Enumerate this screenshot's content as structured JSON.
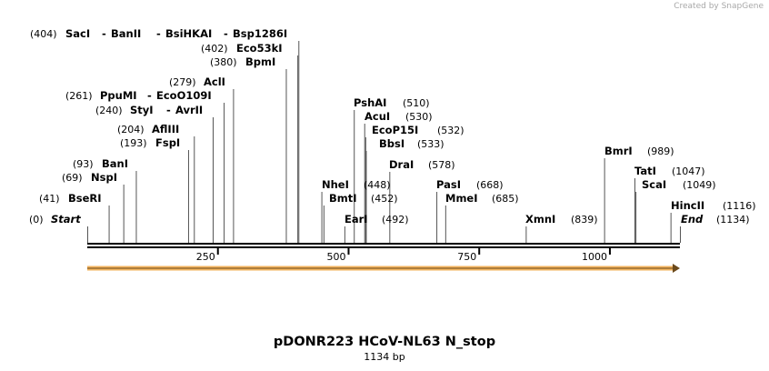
{
  "watermark": "Created by SnapGene",
  "plasmid": {
    "name": "pDONR223 HCoV-NL63 N_stop",
    "length_label": "1134 bp",
    "length": 1134
  },
  "scale": {
    "ticks": [
      250,
      500,
      750,
      1000
    ]
  },
  "feature": {
    "type": "orf-arrow",
    "start": 1,
    "end": 1134,
    "color": "#f2b35e"
  },
  "enzymes": [
    {
      "id": "start",
      "label": "Start",
      "pos": 0,
      "pos_label": "(0)",
      "bold_italic": true
    },
    {
      "id": "bseri",
      "label": "BseRI",
      "pos": 41,
      "pos_label": "(41)"
    },
    {
      "id": "nspi",
      "label": "NspI",
      "pos": 69,
      "pos_label": "(69)"
    },
    {
      "id": "bani",
      "label": "BanI",
      "pos": 93,
      "pos_label": "(93)"
    },
    {
      "id": "fspi",
      "label": "FspI",
      "pos": 193,
      "pos_label": "(193)"
    },
    {
      "id": "afliii",
      "label": "AflIII",
      "pos": 204,
      "pos_label": "(204)"
    },
    {
      "id": "styi",
      "label": "StyI",
      "pos": 240,
      "pos_label": "(240)"
    },
    {
      "id": "avrii",
      "label": "AvrII",
      "pos": 240,
      "pos_label": ""
    },
    {
      "id": "ppumi",
      "label": "PpuMI",
      "pos": 261,
      "pos_label": "(261)"
    },
    {
      "id": "ecoo109i",
      "label": "EcoO109I",
      "pos": 261,
      "pos_label": ""
    },
    {
      "id": "acli",
      "label": "AclI",
      "pos": 279,
      "pos_label": "(279)"
    },
    {
      "id": "bpmi",
      "label": "BpmI",
      "pos": 380,
      "pos_label": "(380)"
    },
    {
      "id": "eco53ki",
      "label": "Eco53kI",
      "pos": 402,
      "pos_label": "(402)"
    },
    {
      "id": "saci",
      "label": "SacI",
      "pos": 404,
      "pos_label": "(404)"
    },
    {
      "id": "banii",
      "label": "BanII",
      "pos": 404,
      "pos_label": ""
    },
    {
      "id": "bsihkai",
      "label": "BsiHKAI",
      "pos": 404,
      "pos_label": ""
    },
    {
      "id": "bsp1286i",
      "label": "Bsp1286I",
      "pos": 404,
      "pos_label": ""
    },
    {
      "id": "nhei",
      "label": "NheI",
      "pos": 448,
      "pos_label": "(448)"
    },
    {
      "id": "bmti",
      "label": "BmtI",
      "pos": 452,
      "pos_label": "(452)"
    },
    {
      "id": "eari",
      "label": "EarI",
      "pos": 492,
      "pos_label": "(492)"
    },
    {
      "id": "pshai",
      "label": "PshAI",
      "pos": 510,
      "pos_label": "(510)"
    },
    {
      "id": "acui",
      "label": "AcuI",
      "pos": 530,
      "pos_label": "(530)"
    },
    {
      "id": "ecop15i",
      "label": "EcoP15I",
      "pos": 532,
      "pos_label": "(532)"
    },
    {
      "id": "bbsi",
      "label": "BbsI",
      "pos": 533,
      "pos_label": "(533)"
    },
    {
      "id": "drai",
      "label": "DraI",
      "pos": 578,
      "pos_label": "(578)"
    },
    {
      "id": "pasi",
      "label": "PasI",
      "pos": 668,
      "pos_label": "(668)"
    },
    {
      "id": "mmei",
      "label": "MmeI",
      "pos": 685,
      "pos_label": "(685)"
    },
    {
      "id": "xmni",
      "label": "XmnI",
      "pos": 839,
      "pos_label": "(839)"
    },
    {
      "id": "bmri",
      "label": "BmrI",
      "pos": 989,
      "pos_label": "(989)"
    },
    {
      "id": "tati",
      "label": "TatI",
      "pos": 1047,
      "pos_label": "(1047)"
    },
    {
      "id": "scai",
      "label": "ScaI",
      "pos": 1049,
      "pos_label": "(1049)"
    },
    {
      "id": "hincii",
      "label": "HincII",
      "pos": 1116,
      "pos_label": "(1116)"
    },
    {
      "id": "end",
      "label": "End",
      "pos": 1134,
      "pos_label": "(1134)",
      "bold_italic": true
    }
  ]
}
